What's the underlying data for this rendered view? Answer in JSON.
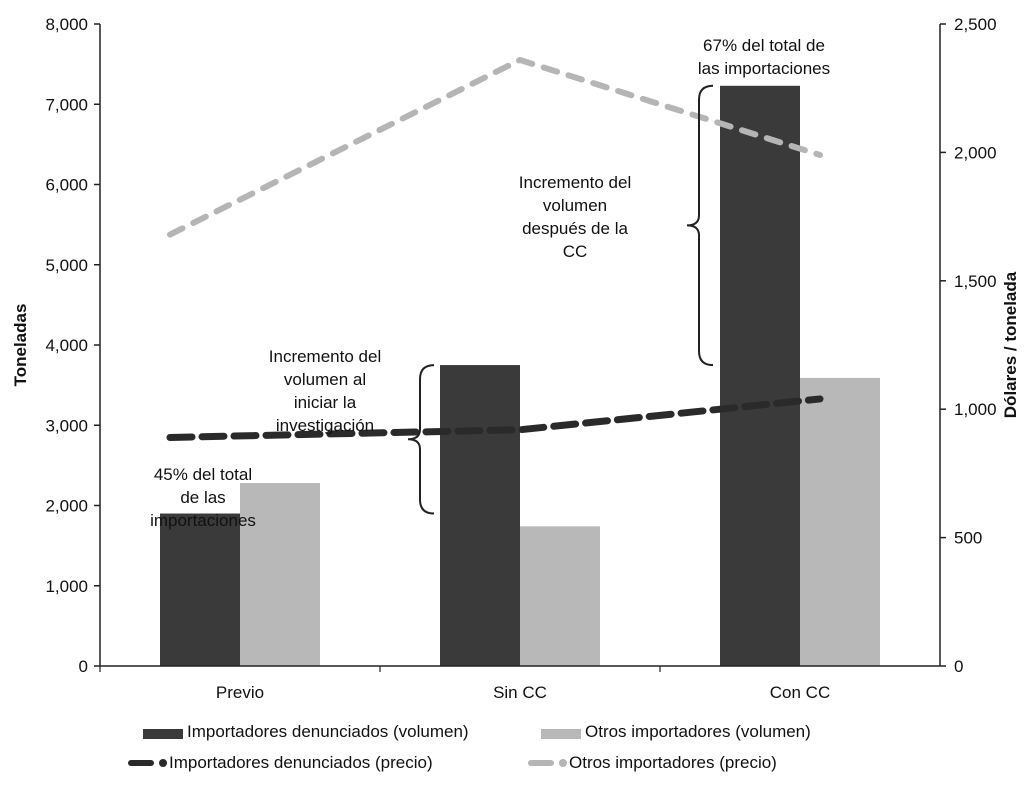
{
  "chart_data": {
    "type": "bar",
    "categories": [
      "Previo",
      "Sin CC",
      "Con CC"
    ],
    "ylabel_left": "Toneladas",
    "ylabel_right": "Dólares / tonelada",
    "ylim_left": [
      0,
      8000
    ],
    "ylim_right": [
      0,
      2500
    ],
    "yticks_left": [
      "0",
      "1,000",
      "2,000",
      "3,000",
      "4,000",
      "5,000",
      "6,000",
      "7,000",
      "8,000"
    ],
    "yticks_right": [
      "0",
      "500",
      "1,000",
      "1,500",
      "2,000",
      "2,500"
    ],
    "bar_series": [
      {
        "name": "Importadores denunciados (volumen)",
        "values": [
          1900,
          3750,
          7230
        ],
        "color": "#3a3a3a"
      },
      {
        "name": "Otros importadores (volumen)",
        "values": [
          2280,
          1740,
          3590
        ],
        "color": "#b8b8b8"
      }
    ],
    "line_series": [
      {
        "name": "Importadores denunciados (precio)",
        "values": [
          890,
          920,
          1040
        ],
        "color": "#2a2a2a",
        "axis": "right"
      },
      {
        "name": "Otros importadores (precio)",
        "values": [
          1680,
          2360,
          1990
        ],
        "color": "#b5b5b5",
        "axis": "right"
      }
    ],
    "annotations": [
      {
        "id": "pct45",
        "lines": [
          "45% del total",
          "de las",
          "importaciones"
        ]
      },
      {
        "id": "inc-inv",
        "lines": [
          "Incremento del",
          "volumen al",
          "iniciar la",
          "investigación"
        ]
      },
      {
        "id": "inc-cc",
        "lines": [
          "Incremento del",
          "volumen",
          "después de la",
          "CC"
        ]
      },
      {
        "id": "pct67",
        "lines": [
          "67% del total de",
          "las importaciones"
        ]
      }
    ],
    "grid": false,
    "legend_position": "bottom"
  },
  "colors": {
    "dark": "#3a3a3a",
    "light": "#b8b8b8"
  }
}
